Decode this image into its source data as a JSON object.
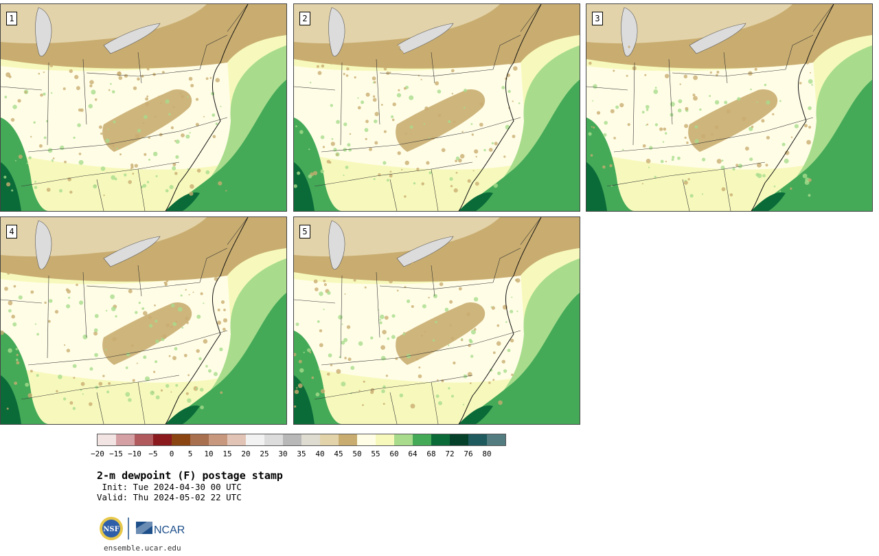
{
  "panels": [
    {
      "label": "1"
    },
    {
      "label": "2"
    },
    {
      "label": "3"
    },
    {
      "label": "4"
    },
    {
      "label": "5"
    }
  ],
  "colorbar": {
    "colors": [
      "#f3e4e4",
      "#d4a0a4",
      "#b05a5e",
      "#8b1a1f",
      "#8a4512",
      "#a8704e",
      "#c8987e",
      "#e2c4b6",
      "#f2f2f2",
      "#dcdcdc",
      "#b8b8b8",
      "#dedcd0",
      "#e3d3aa",
      "#c9ad70",
      "#fffde6",
      "#f7f9bc",
      "#a8dc8c",
      "#44aa58",
      "#0a6b38",
      "#05402a",
      "#1e5a5e",
      "#527c80"
    ],
    "ticks": [
      "−20",
      "−15",
      "−10",
      "−5",
      "0",
      "5",
      "10",
      "15",
      "20",
      "25",
      "30",
      "35",
      "40",
      "45",
      "50",
      "55",
      "60",
      "64",
      "68",
      "72",
      "76",
      "80"
    ]
  },
  "map_colors": {
    "dry_brown": "#c9ad70",
    "light_tan": "#e3d3aa",
    "pale_yellow": "#fffde6",
    "yellow": "#f7f9bc",
    "light_green": "#a8dc8c",
    "green": "#44aa58",
    "dark_green": "#0a6b38",
    "grey": "#dcdcdc"
  },
  "title": "2-m dewpoint (F) postage stamp",
  "init": " Init: Tue 2024-04-30 00 UTC",
  "valid": "Valid: Thu 2024-05-02 22 UTC",
  "logo": {
    "left_icon": "nsf-seal-icon",
    "right_text": "NCAR"
  },
  "url": "ensemble.ucar.edu"
}
